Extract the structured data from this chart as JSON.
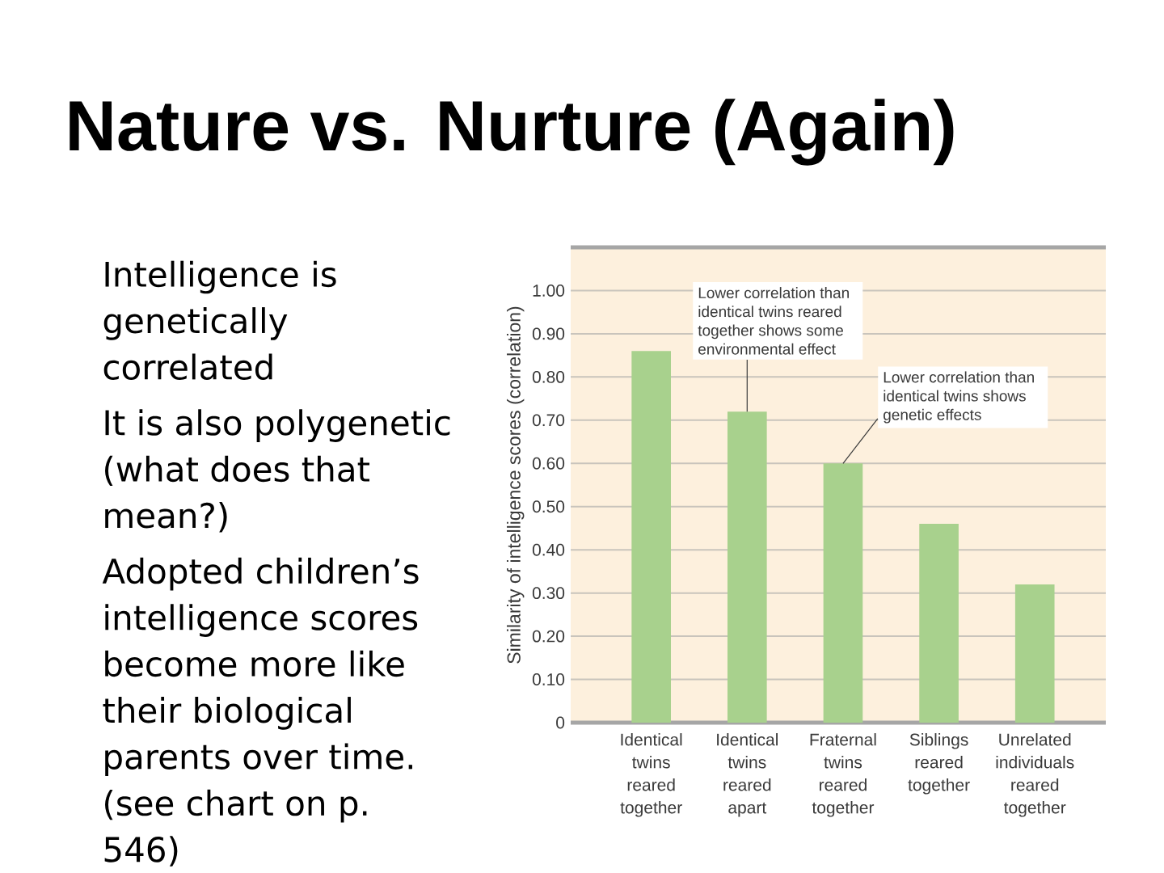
{
  "chart_data": {
    "type": "bar",
    "title": "Nature vs. Nurture (Again)",
    "ylabel": "Similarity of intelligence scores (correlation)",
    "categories": [
      "Identical twins reared together",
      "Identical twins reared apart",
      "Fraternal twins reared together",
      "Siblings reared together",
      "Unrelated individuals reared together"
    ],
    "values": [
      0.86,
      0.72,
      0.6,
      0.46,
      0.32
    ],
    "color": "#a8d18d",
    "ylim": [
      0,
      1.1
    ],
    "yticks": [
      0,
      {
        "value": 0.1,
        "label": "0.10"
      },
      {
        "value": 0.2,
        "label": "0.20"
      },
      {
        "value": 0.3,
        "label": "0.30"
      },
      {
        "value": 0.4,
        "label": "0.40"
      },
      {
        "value": 0.5,
        "label": "0.50"
      },
      {
        "value": 0.6,
        "label": "0.60"
      },
      {
        "value": 0.7,
        "label": "0.70"
      },
      {
        "value": 0.8,
        "label": "0.80"
      },
      {
        "value": 0.9,
        "label": "0.90"
      },
      {
        "value": 1.0,
        "label": "1.00"
      }
    ],
    "grid": "y",
    "annotations": [
      "Intelligence is genetically correlated",
      "It is also polygenetic (what does that mean?)",
      "Adopted children’s intelligence scores become more like their biological parents over time. (see chart on p. 546)",
      {
        "text": "Lower correlation than identical twins reared together shows some environmental effect",
        "x": "Identical twins reared apart",
        "y": 0.72
      },
      {
        "text": "Lower correlation than identical twins shows genetic effects",
        "x": "Fraternal twins reared together",
        "y": 0.6
      }
    ]
  }
}
